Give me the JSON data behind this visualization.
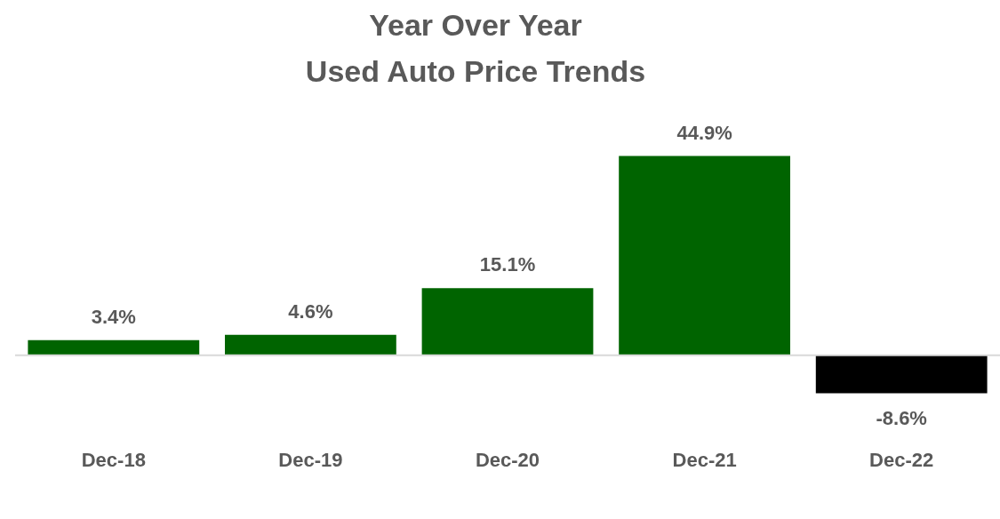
{
  "chart_data": {
    "type": "bar",
    "title": "Year Over Year\nUsed Auto Price Trends",
    "categories": [
      "Dec-18",
      "Dec-19",
      "Dec-20",
      "Dec-21",
      "Dec-22"
    ],
    "values": [
      3.4,
      4.6,
      15.1,
      44.9,
      -8.6
    ],
    "colors": [
      "#006400",
      "#006400",
      "#006400",
      "#006400",
      "#000000"
    ],
    "value_labels": [
      "3.4%",
      "4.6%",
      "15.1%",
      "44.9%",
      "-8.6%"
    ],
    "grid": false,
    "legend": false
  }
}
